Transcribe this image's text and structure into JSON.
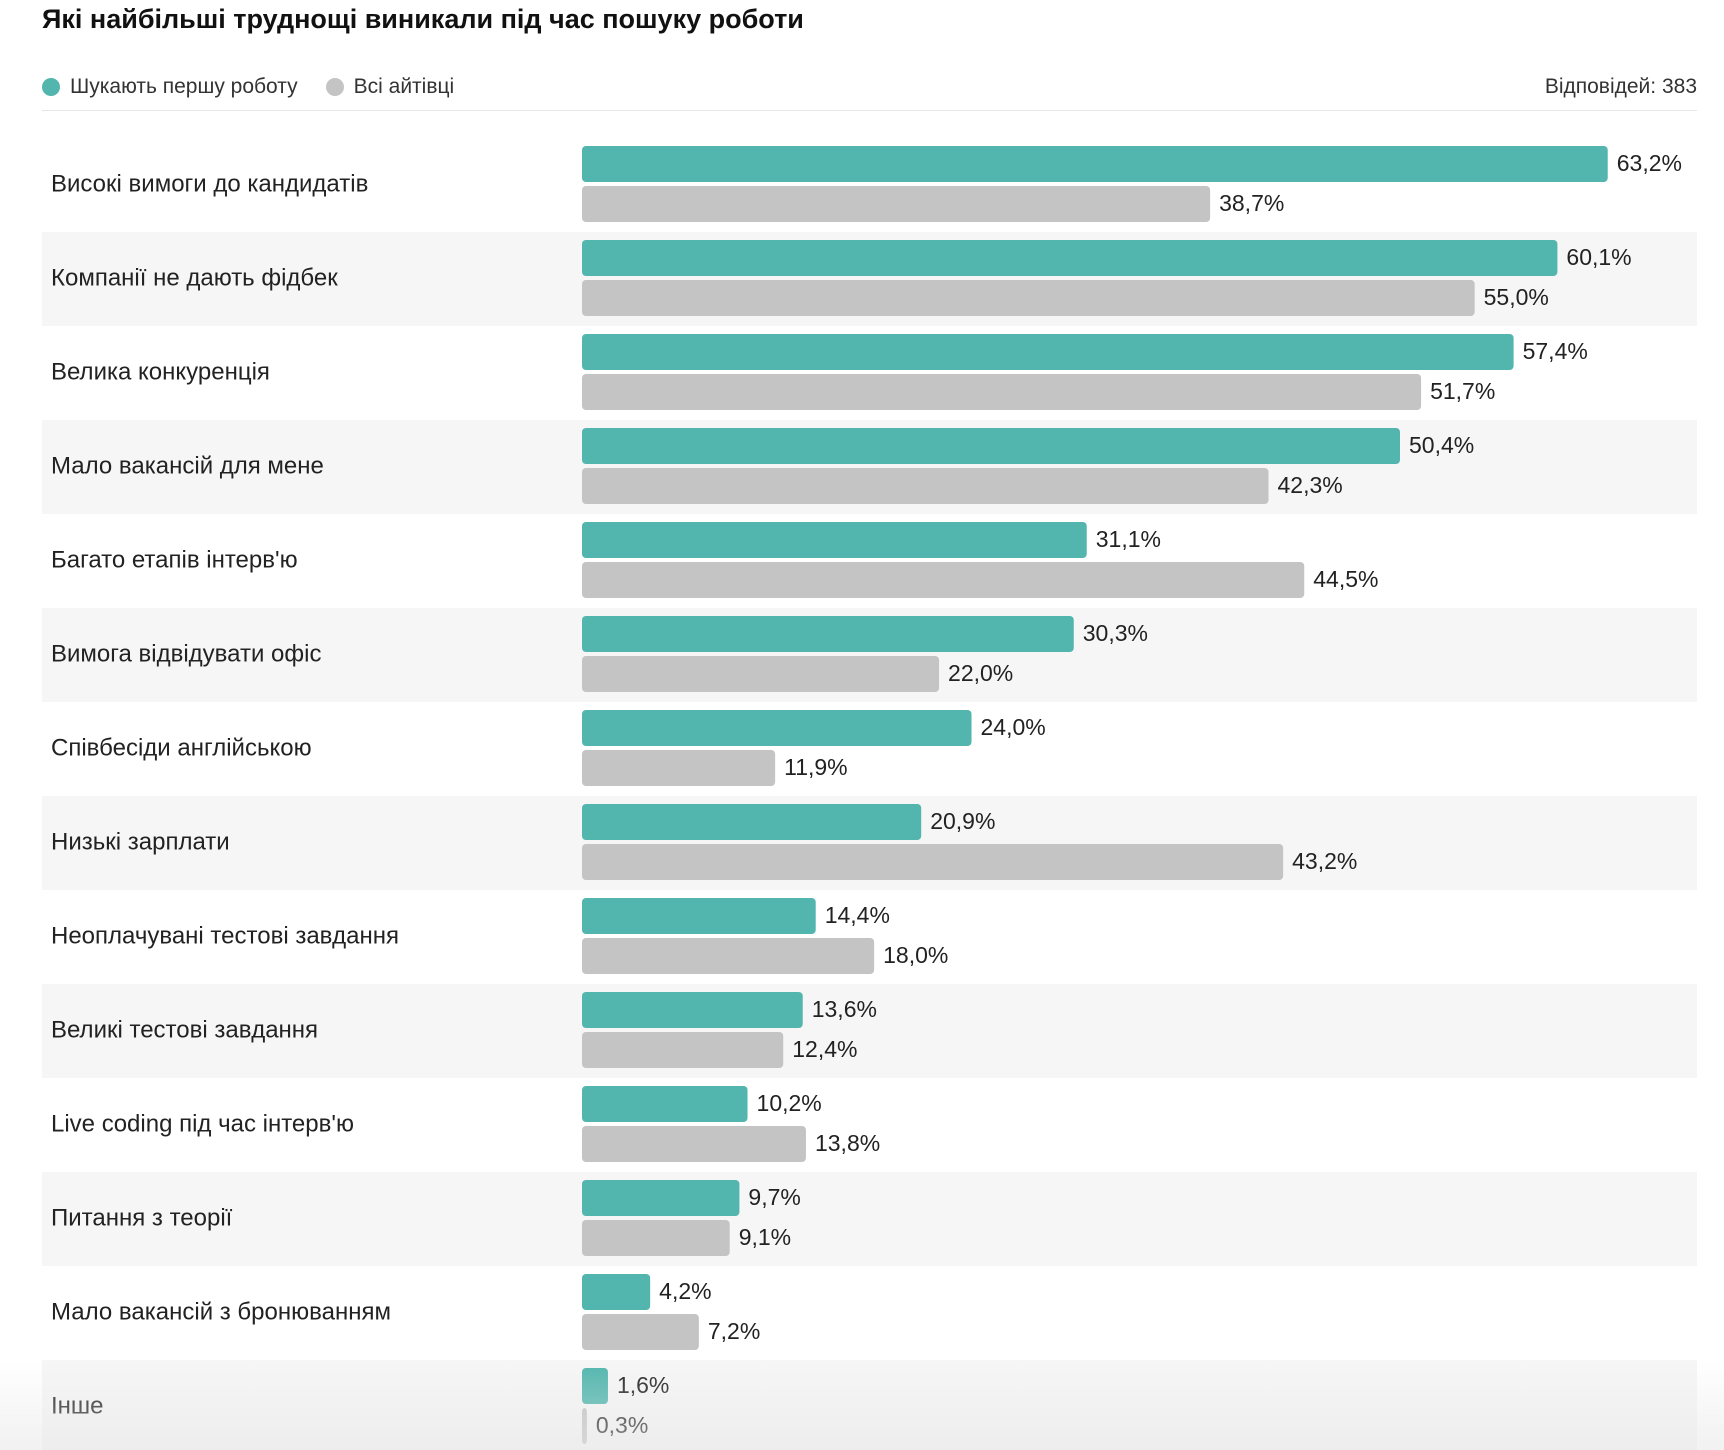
{
  "title": "Які найбільші труднощі виникали під час пошуку роботи",
  "responses_text": "Відповідей: 383",
  "colors": {
    "series_first_job": "#52b6ae",
    "series_all": "#c4c4c4",
    "row_stripe": "#f6f6f6"
  },
  "chart_data": {
    "type": "bar",
    "orientation": "horizontal",
    "title": "Які найбільші труднощі виникали під час пошуку роботи",
    "legend_position": "top-left",
    "unit": "%",
    "categories": [
      "Високі вимоги до кандидатів",
      "Компанії не дають фідбек",
      "Велика конкуренція",
      "Мало вакансій для мене",
      "Багато етапів інтерв'ю",
      "Вимога відвідувати офіс",
      "Співбесіди англійською",
      "Низькі зарплати",
      "Неоплачувані тестові завдання",
      "Великі тестові завдання",
      "Live coding під час інтерв'ю",
      "Питання з теорії",
      "Мало вакансій з бронюванням",
      "Інше"
    ],
    "series": [
      {
        "name": "Шукають першу роботу",
        "color": "#52b6ae",
        "values": [
          63.2,
          60.1,
          57.4,
          50.4,
          31.1,
          30.3,
          24.0,
          20.9,
          14.4,
          13.6,
          10.2,
          9.7,
          4.2,
          1.6
        ],
        "labels": [
          "63,2%",
          "60,1%",
          "57,4%",
          "50,4%",
          "31,1%",
          "30,3%",
          "24,0%",
          "20,9%",
          "14,4%",
          "13,6%",
          "10,2%",
          "9,7%",
          "4,2%",
          "1,6%"
        ]
      },
      {
        "name": "Всі айтівці",
        "color": "#c4c4c4",
        "values": [
          38.7,
          55.0,
          51.7,
          42.3,
          44.5,
          22.0,
          11.9,
          43.2,
          18.0,
          12.4,
          13.8,
          9.1,
          7.2,
          0.3
        ],
        "labels": [
          "38,7%",
          "55,0%",
          "51,7%",
          "42,3%",
          "44,5%",
          "22,0%",
          "11,9%",
          "43,2%",
          "18,0%",
          "12,4%",
          "13,8%",
          "9,1%",
          "7,2%",
          "0,3%"
        ]
      }
    ]
  }
}
